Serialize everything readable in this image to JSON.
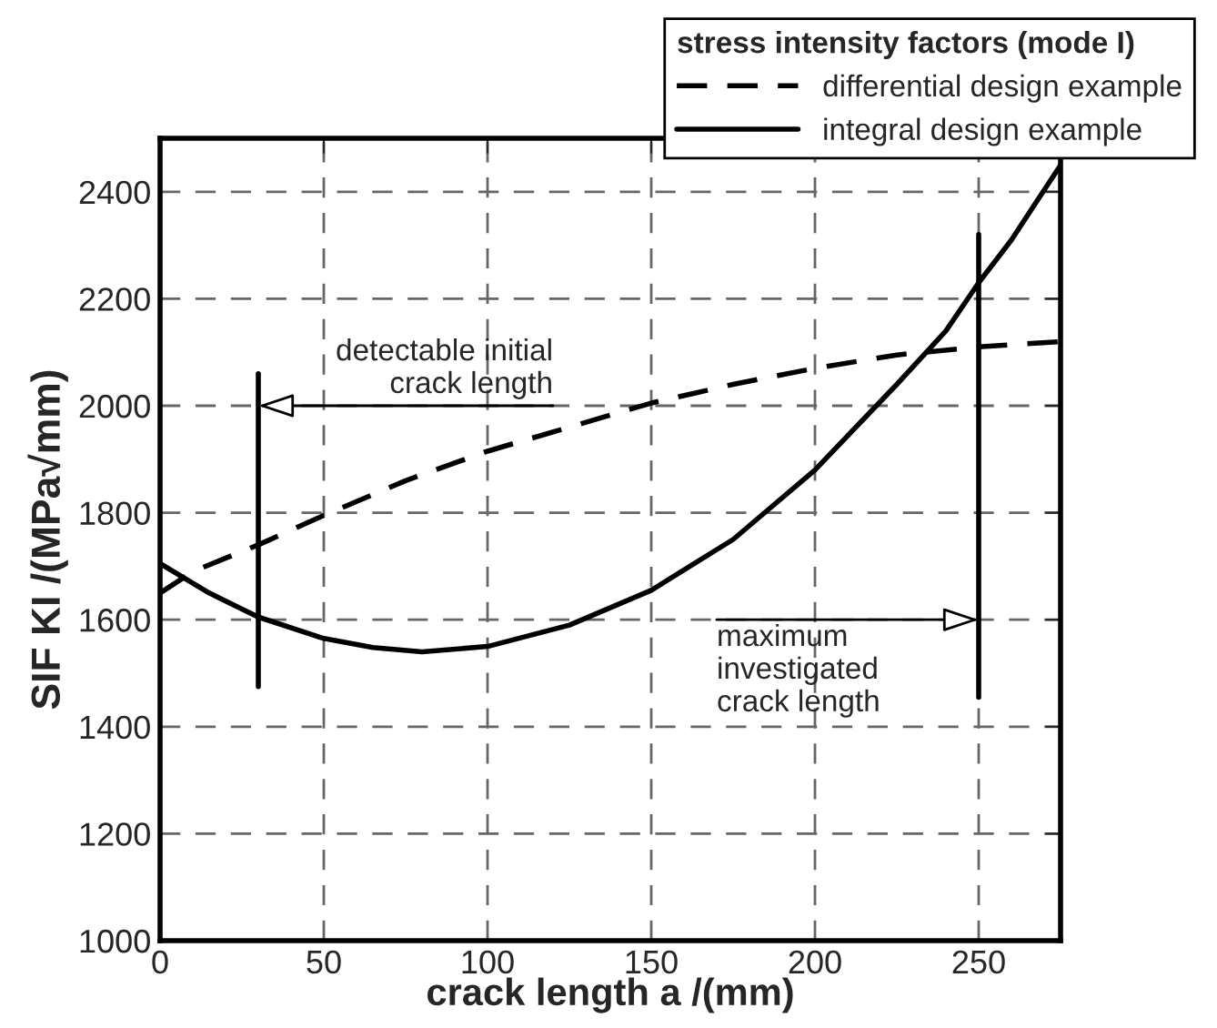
{
  "chart_data": {
    "type": "line",
    "xlabel": "crack length a /(mm)",
    "ylabel": "SIF KI /(MPa√mm)",
    "legend_title": "stress intensity factors (mode I)",
    "xlim": [
      0,
      275
    ],
    "ylim": [
      1000,
      2500
    ],
    "xticks": [
      0,
      50,
      100,
      150,
      200,
      250
    ],
    "yticks": [
      1000,
      1200,
      1400,
      1600,
      1800,
      2000,
      2200,
      2400
    ],
    "grid": true,
    "legend": "top right",
    "marker": "none",
    "series": [
      {
        "name": "differential design example",
        "color": "#000000",
        "line_style": "dashed",
        "x": [
          0,
          10,
          30,
          50,
          75,
          100,
          125,
          150,
          175,
          200,
          225,
          250,
          275
        ],
        "values": [
          1650,
          1690,
          1740,
          1795,
          1860,
          1915,
          1960,
          2005,
          2040,
          2070,
          2095,
          2110,
          2120
        ]
      },
      {
        "name": "integral design example",
        "color": "#000000",
        "line_style": "solid",
        "x": [
          0,
          15,
          30,
          50,
          65,
          80,
          100,
          125,
          150,
          175,
          200,
          225,
          240,
          250,
          260,
          275
        ],
        "values": [
          1705,
          1650,
          1605,
          1565,
          1548,
          1540,
          1550,
          1590,
          1655,
          1750,
          1880,
          2040,
          2140,
          2230,
          2310,
          2450
        ]
      },
      {
        "color": "#000000",
        "line_style": "solid",
        "x": [
          30,
          30
        ],
        "values": [
          1475,
          2060
        ]
      },
      {
        "color": "#000000",
        "line_style": "solid",
        "x": [
          250,
          250
        ],
        "values": [
          1455,
          2320
        ]
      }
    ],
    "annotations": [
      {
        "text": "detectable initial\ncrack length",
        "x": 30,
        "y": 2000
      },
      {
        "text": "maximum\ninvestigated\ncrack length",
        "x": 250,
        "y": 1600
      }
    ]
  }
}
